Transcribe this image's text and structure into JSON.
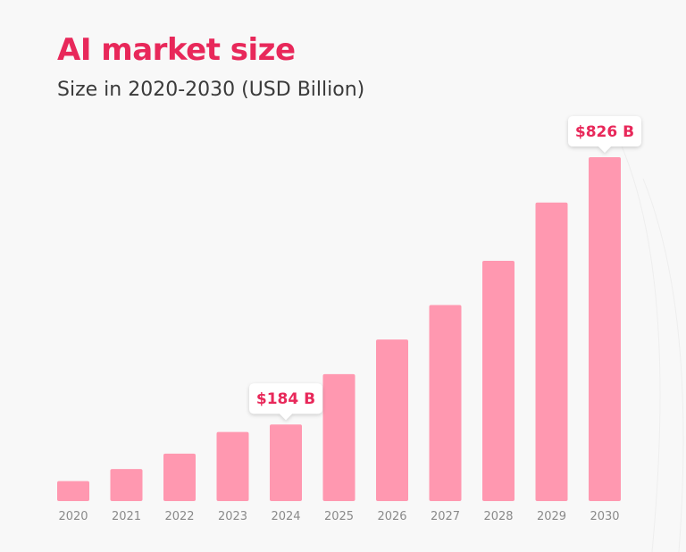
{
  "title": "AI market size",
  "subtitle": "Size in 2020-2030 (USD Billion)",
  "colors": {
    "bar": "#ff98b0",
    "accent": "#e8285a",
    "tick": "#8a8a8a",
    "callout_bg": "#ffffff"
  },
  "chart_data": {
    "type": "bar",
    "categories": [
      "2020",
      "2021",
      "2022",
      "2023",
      "2024",
      "2025",
      "2026",
      "2027",
      "2028",
      "2029",
      "2030"
    ],
    "values": [
      48,
      77,
      114,
      166,
      184,
      305,
      388,
      471,
      577,
      717,
      826
    ],
    "callouts": [
      {
        "category": "2024",
        "label": "$184 B"
      },
      {
        "category": "2030",
        "label": "$826 B"
      }
    ],
    "ylim": [
      0,
      826
    ],
    "grid": false,
    "legend": "none"
  }
}
